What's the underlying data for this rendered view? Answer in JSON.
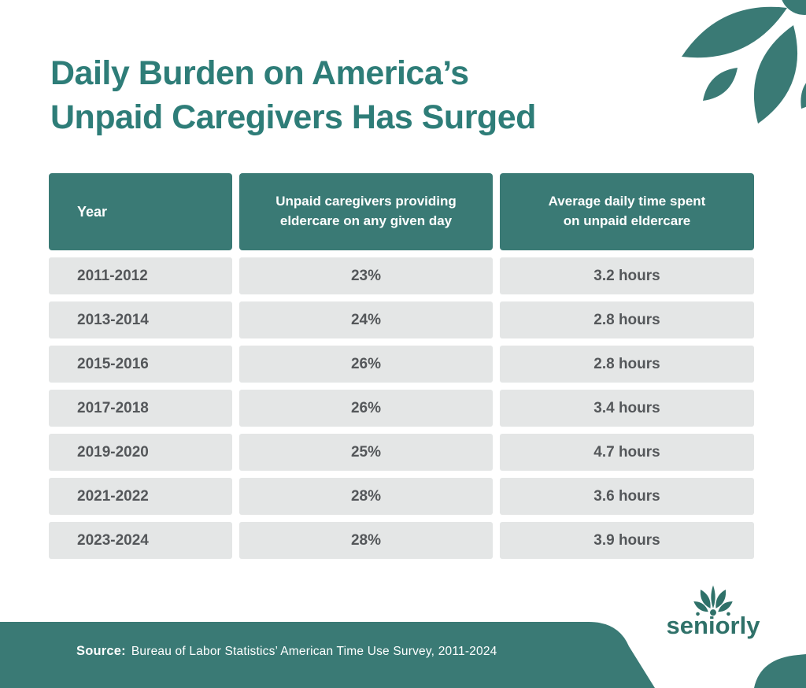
{
  "colors": {
    "teal_fill": "#3A7A75",
    "title_teal": "#2E7D78",
    "logo_teal": "#2F7169",
    "row_bg": "#E4E6E6",
    "row_text": "#54575A",
    "header_text": "#FFFFFF"
  },
  "header": {
    "title_lines": [
      "Daily Burden on America’s",
      "Unpaid Caregivers Has Surged"
    ]
  },
  "table": {
    "columns": [
      {
        "id": "year",
        "label_lines": [
          "Year"
        ]
      },
      {
        "id": "caregivers_pct",
        "label_lines": [
          "Unpaid caregivers providing",
          "eldercare on any given day"
        ]
      },
      {
        "id": "avg_time",
        "label_lines": [
          "Average daily time spent",
          "on unpaid eldercare"
        ]
      }
    ],
    "rows": [
      {
        "year": "2011-2012",
        "caregivers_pct": "23%",
        "avg_time": "3.2 hours"
      },
      {
        "year": "2013-2014",
        "caregivers_pct": "24%",
        "avg_time": "2.8 hours"
      },
      {
        "year": "2015-2016",
        "caregivers_pct": "26%",
        "avg_time": "2.8 hours"
      },
      {
        "year": "2017-2018",
        "caregivers_pct": "26%",
        "avg_time": "3.4 hours"
      },
      {
        "year": "2019-2020",
        "caregivers_pct": "25%",
        "avg_time": "4.7 hours"
      },
      {
        "year": "2021-2022",
        "caregivers_pct": "28%",
        "avg_time": "3.6 hours"
      },
      {
        "year": "2023-2024",
        "caregivers_pct": "28%",
        "avg_time": "3.9 hours"
      }
    ]
  },
  "footer": {
    "source_label": "Source:",
    "source_text": "Bureau of Labor Statistics’ American Time Use Survey, 2011-2024"
  },
  "logo": {
    "text": "seniorly"
  },
  "chart_data": {
    "type": "table",
    "title": "Daily Burden on America’s Unpaid Caregivers Has Surged",
    "categories": [
      "2011-2012",
      "2013-2014",
      "2015-2016",
      "2017-2018",
      "2019-2020",
      "2021-2022",
      "2023-2024"
    ],
    "series": [
      {
        "name": "Unpaid caregivers providing eldercare on any given day",
        "values": [
          "23%",
          "24%",
          "26%",
          "26%",
          "25%",
          "28%",
          "28%"
        ]
      },
      {
        "name": "Average daily time spent on unpaid eldercare",
        "values": [
          "3.2 hours",
          "2.8 hours",
          "2.8 hours",
          "3.4 hours",
          "4.7 hours",
          "3.6 hours",
          "3.9 hours"
        ]
      }
    ],
    "source": "Bureau of Labor Statistics’ American Time Use Survey, 2011-2024"
  }
}
